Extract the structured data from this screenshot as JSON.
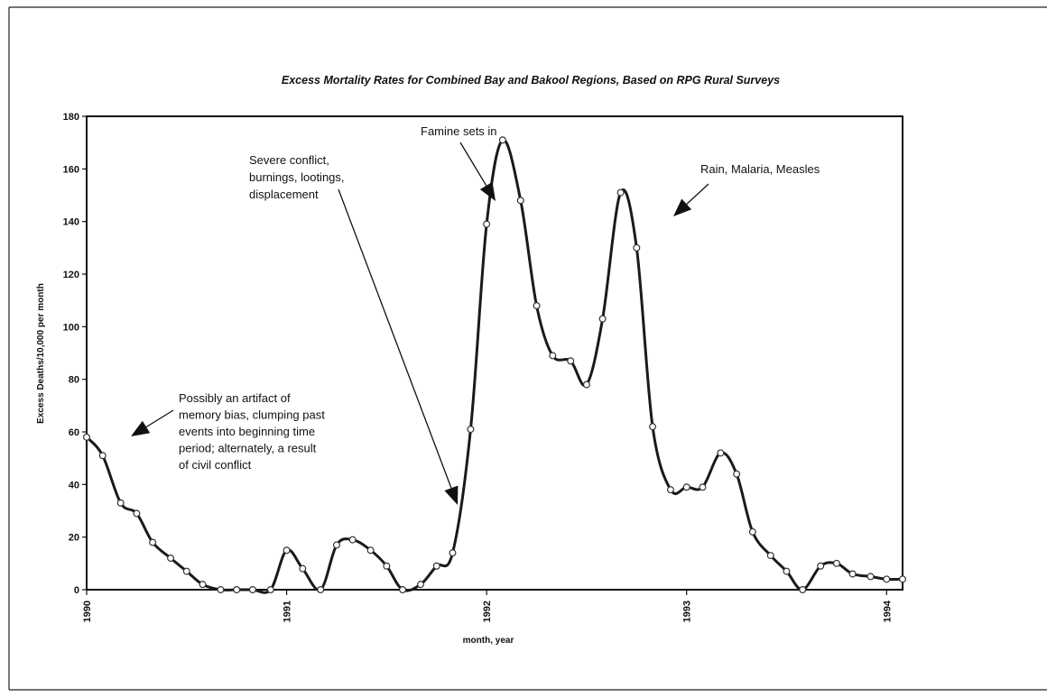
{
  "chart_data": {
    "type": "line",
    "title": "Excess Mortality Rates for Combined Bay and Bakool Regions, Based on RPG Rural Surveys",
    "xlabel": "month, year",
    "ylabel": "Excess Deaths/10,000 per month",
    "ylim": [
      0,
      180
    ],
    "yticks": [
      0,
      20,
      40,
      60,
      80,
      100,
      120,
      140,
      160,
      180
    ],
    "xlim": [
      1990,
      1994.08
    ],
    "xticks": [
      {
        "value": 1990,
        "label": "1990"
      },
      {
        "value": 1991,
        "label": "1991"
      },
      {
        "value": 1992,
        "label": "1992"
      },
      {
        "value": 1993,
        "label": "1993"
      },
      {
        "value": 1994,
        "label": "1994"
      }
    ],
    "grid": false,
    "series": [
      {
        "x": [
          1990.0,
          1990.08,
          1990.17,
          1990.25,
          1990.33,
          1990.42,
          1990.5,
          1990.58,
          1990.67,
          1990.75,
          1990.83,
          1990.92,
          1991.0,
          1991.08,
          1991.17,
          1991.25,
          1991.33,
          1991.42,
          1991.5,
          1991.58,
          1991.67,
          1991.75,
          1991.83,
          1991.92,
          1992.0,
          1992.08,
          1992.17,
          1992.25,
          1992.33,
          1992.42,
          1992.5,
          1992.58,
          1992.67,
          1992.75,
          1992.83,
          1992.92,
          1993.0,
          1993.08,
          1993.17,
          1993.25,
          1993.33,
          1993.42,
          1993.5,
          1993.58,
          1993.67,
          1993.75,
          1993.83,
          1993.92,
          1994.0,
          1994.08
        ],
        "values": [
          58,
          51,
          33,
          29,
          18,
          12,
          7,
          2,
          0,
          0,
          0,
          0,
          15,
          8,
          0,
          17,
          19,
          15,
          9,
          0,
          2,
          9,
          14,
          61,
          139,
          171,
          148,
          108,
          89,
          87,
          78,
          103,
          151,
          130,
          62,
          38,
          39,
          39,
          52,
          44,
          22,
          13,
          7,
          0,
          9,
          10,
          6,
          5,
          4,
          4
        ]
      }
    ],
    "annotations": [
      {
        "lines": [
          "Famine sets in"
        ]
      },
      {
        "lines": [
          "Severe conflict,",
          "burnings, lootings,",
          "displacement"
        ]
      },
      {
        "lines": [
          "Rain, Malaria, Measles"
        ]
      },
      {
        "lines": [
          "Possibly an artifact of",
          "memory bias, clumping past",
          "events into beginning time",
          "period;  alternately, a result",
          "of civil conflict"
        ]
      }
    ]
  }
}
